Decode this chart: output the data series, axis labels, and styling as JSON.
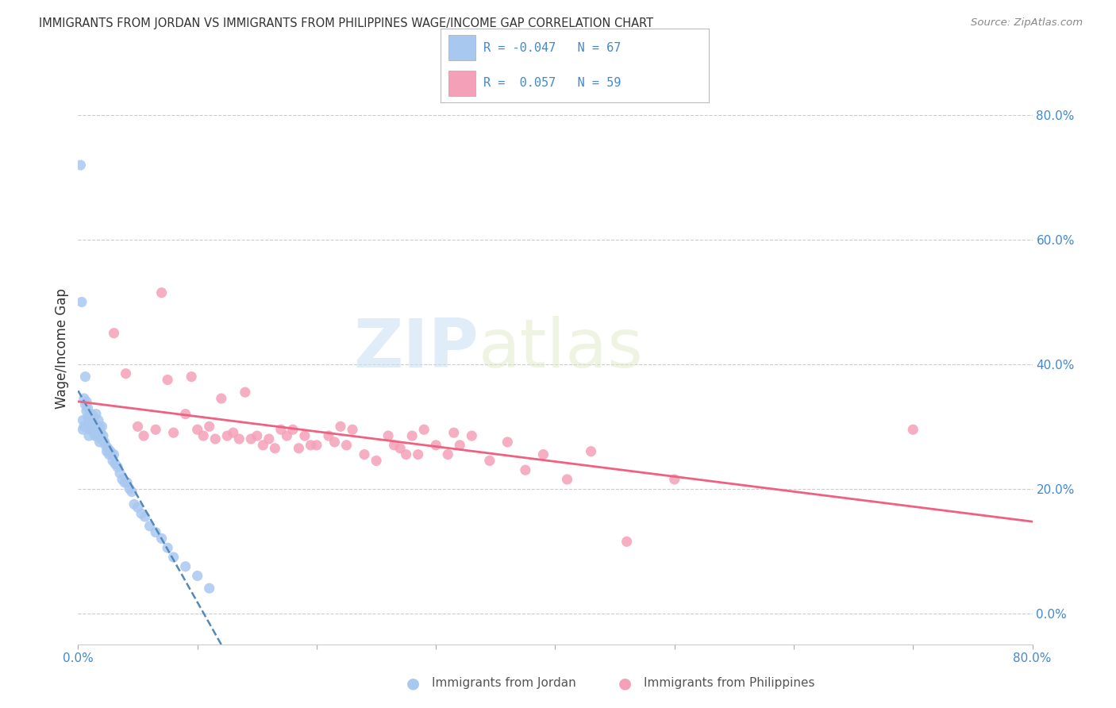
{
  "title": "IMMIGRANTS FROM JORDAN VS IMMIGRANTS FROM PHILIPPINES WAGE/INCOME GAP CORRELATION CHART",
  "source": "Source: ZipAtlas.com",
  "ylabel": "Wage/Income Gap",
  "xlim": [
    0.0,
    0.8
  ],
  "ylim": [
    -0.05,
    0.9
  ],
  "right_yticks": [
    0.0,
    0.2,
    0.4,
    0.6,
    0.8
  ],
  "right_yticklabels": [
    "0.0%",
    "20.0%",
    "40.0%",
    "60.0%",
    "80.0%"
  ],
  "xticks": [
    0.0,
    0.1,
    0.2,
    0.3,
    0.4,
    0.5,
    0.6,
    0.7,
    0.8
  ],
  "xticklabels": [
    "0.0%",
    "",
    "",
    "",
    "",
    "",
    "",
    "",
    "80.0%"
  ],
  "jordan_color": "#a8c8f0",
  "philippines_color": "#f4a0b8",
  "jordan_line_color": "#5588bb",
  "philippines_line_color": "#f06080",
  "watermark_zip": "ZIP",
  "watermark_atlas": "atlas",
  "jordan_x": [
    0.002,
    0.003,
    0.004,
    0.004,
    0.005,
    0.005,
    0.006,
    0.006,
    0.007,
    0.007,
    0.008,
    0.008,
    0.009,
    0.009,
    0.009,
    0.01,
    0.01,
    0.01,
    0.011,
    0.011,
    0.012,
    0.012,
    0.013,
    0.013,
    0.014,
    0.014,
    0.015,
    0.015,
    0.016,
    0.016,
    0.017,
    0.017,
    0.018,
    0.018,
    0.019,
    0.019,
    0.02,
    0.021,
    0.022,
    0.023,
    0.024,
    0.025,
    0.026,
    0.027,
    0.028,
    0.029,
    0.03,
    0.031,
    0.033,
    0.035,
    0.037,
    0.039,
    0.041,
    0.043,
    0.045,
    0.047,
    0.05,
    0.053,
    0.056,
    0.06,
    0.065,
    0.07,
    0.075,
    0.08,
    0.09,
    0.1,
    0.11
  ],
  "jordan_y": [
    0.72,
    0.5,
    0.31,
    0.295,
    0.345,
    0.3,
    0.335,
    0.38,
    0.34,
    0.325,
    0.33,
    0.315,
    0.31,
    0.3,
    0.285,
    0.315,
    0.305,
    0.295,
    0.32,
    0.295,
    0.31,
    0.3,
    0.315,
    0.295,
    0.3,
    0.285,
    0.32,
    0.295,
    0.3,
    0.285,
    0.31,
    0.285,
    0.3,
    0.275,
    0.29,
    0.28,
    0.3,
    0.285,
    0.275,
    0.27,
    0.26,
    0.265,
    0.255,
    0.26,
    0.255,
    0.245,
    0.255,
    0.24,
    0.235,
    0.225,
    0.215,
    0.21,
    0.21,
    0.2,
    0.195,
    0.175,
    0.17,
    0.16,
    0.155,
    0.14,
    0.13,
    0.12,
    0.105,
    0.09,
    0.075,
    0.06,
    0.04
  ],
  "philippines_x": [
    0.03,
    0.04,
    0.05,
    0.055,
    0.065,
    0.07,
    0.075,
    0.08,
    0.09,
    0.095,
    0.1,
    0.105,
    0.11,
    0.115,
    0.12,
    0.125,
    0.13,
    0.135,
    0.14,
    0.145,
    0.15,
    0.155,
    0.16,
    0.165,
    0.17,
    0.175,
    0.18,
    0.185,
    0.19,
    0.195,
    0.2,
    0.21,
    0.215,
    0.22,
    0.225,
    0.23,
    0.24,
    0.25,
    0.26,
    0.265,
    0.27,
    0.275,
    0.28,
    0.285,
    0.29,
    0.3,
    0.31,
    0.315,
    0.32,
    0.33,
    0.345,
    0.36,
    0.375,
    0.39,
    0.41,
    0.43,
    0.46,
    0.5,
    0.7
  ],
  "philippines_y": [
    0.45,
    0.385,
    0.3,
    0.285,
    0.295,
    0.515,
    0.375,
    0.29,
    0.32,
    0.38,
    0.295,
    0.285,
    0.3,
    0.28,
    0.345,
    0.285,
    0.29,
    0.28,
    0.355,
    0.28,
    0.285,
    0.27,
    0.28,
    0.265,
    0.295,
    0.285,
    0.295,
    0.265,
    0.285,
    0.27,
    0.27,
    0.285,
    0.275,
    0.3,
    0.27,
    0.295,
    0.255,
    0.245,
    0.285,
    0.27,
    0.265,
    0.255,
    0.285,
    0.255,
    0.295,
    0.27,
    0.255,
    0.29,
    0.27,
    0.285,
    0.245,
    0.275,
    0.23,
    0.255,
    0.215,
    0.26,
    0.115,
    0.215,
    0.295
  ]
}
